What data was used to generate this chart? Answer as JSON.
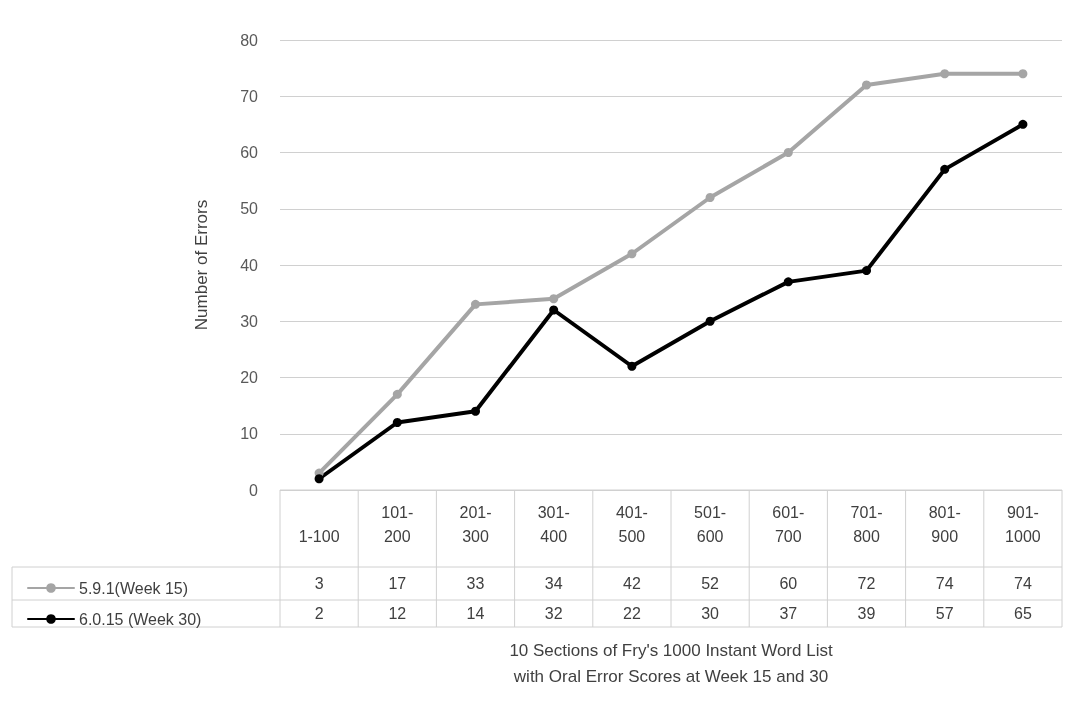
{
  "chart_data": {
    "type": "line",
    "annotations": [
      "10 Sections of Fry's 1000 Instant Word List\nwith Oral Error Scores at Week 15 and 30"
    ],
    "ylabel": "Number of Errors",
    "categories": [
      "1-100",
      "101-200",
      "201-300",
      "301-400",
      "401-500",
      "501-600",
      "601-700",
      "701-800",
      "801-900",
      "901-1000"
    ],
    "series": [
      {
        "name": "5.9.1(Week 15)",
        "color": "#a5a5a5",
        "values": [
          3,
          17,
          33,
          34,
          42,
          52,
          60,
          72,
          74,
          74
        ]
      },
      {
        "name": "6.0.15 (Week 30)",
        "color": "#000000",
        "values": [
          2,
          12,
          14,
          32,
          22,
          30,
          37,
          39,
          57,
          65
        ]
      }
    ],
    "ylim": [
      0,
      80
    ],
    "yticks": [
      0,
      10,
      20,
      30,
      40,
      50,
      60,
      70,
      80
    ],
    "grid": "y",
    "legend": "bottom left",
    "marker": "circle",
    "line_style": "solid",
    "data_labels": true
  }
}
